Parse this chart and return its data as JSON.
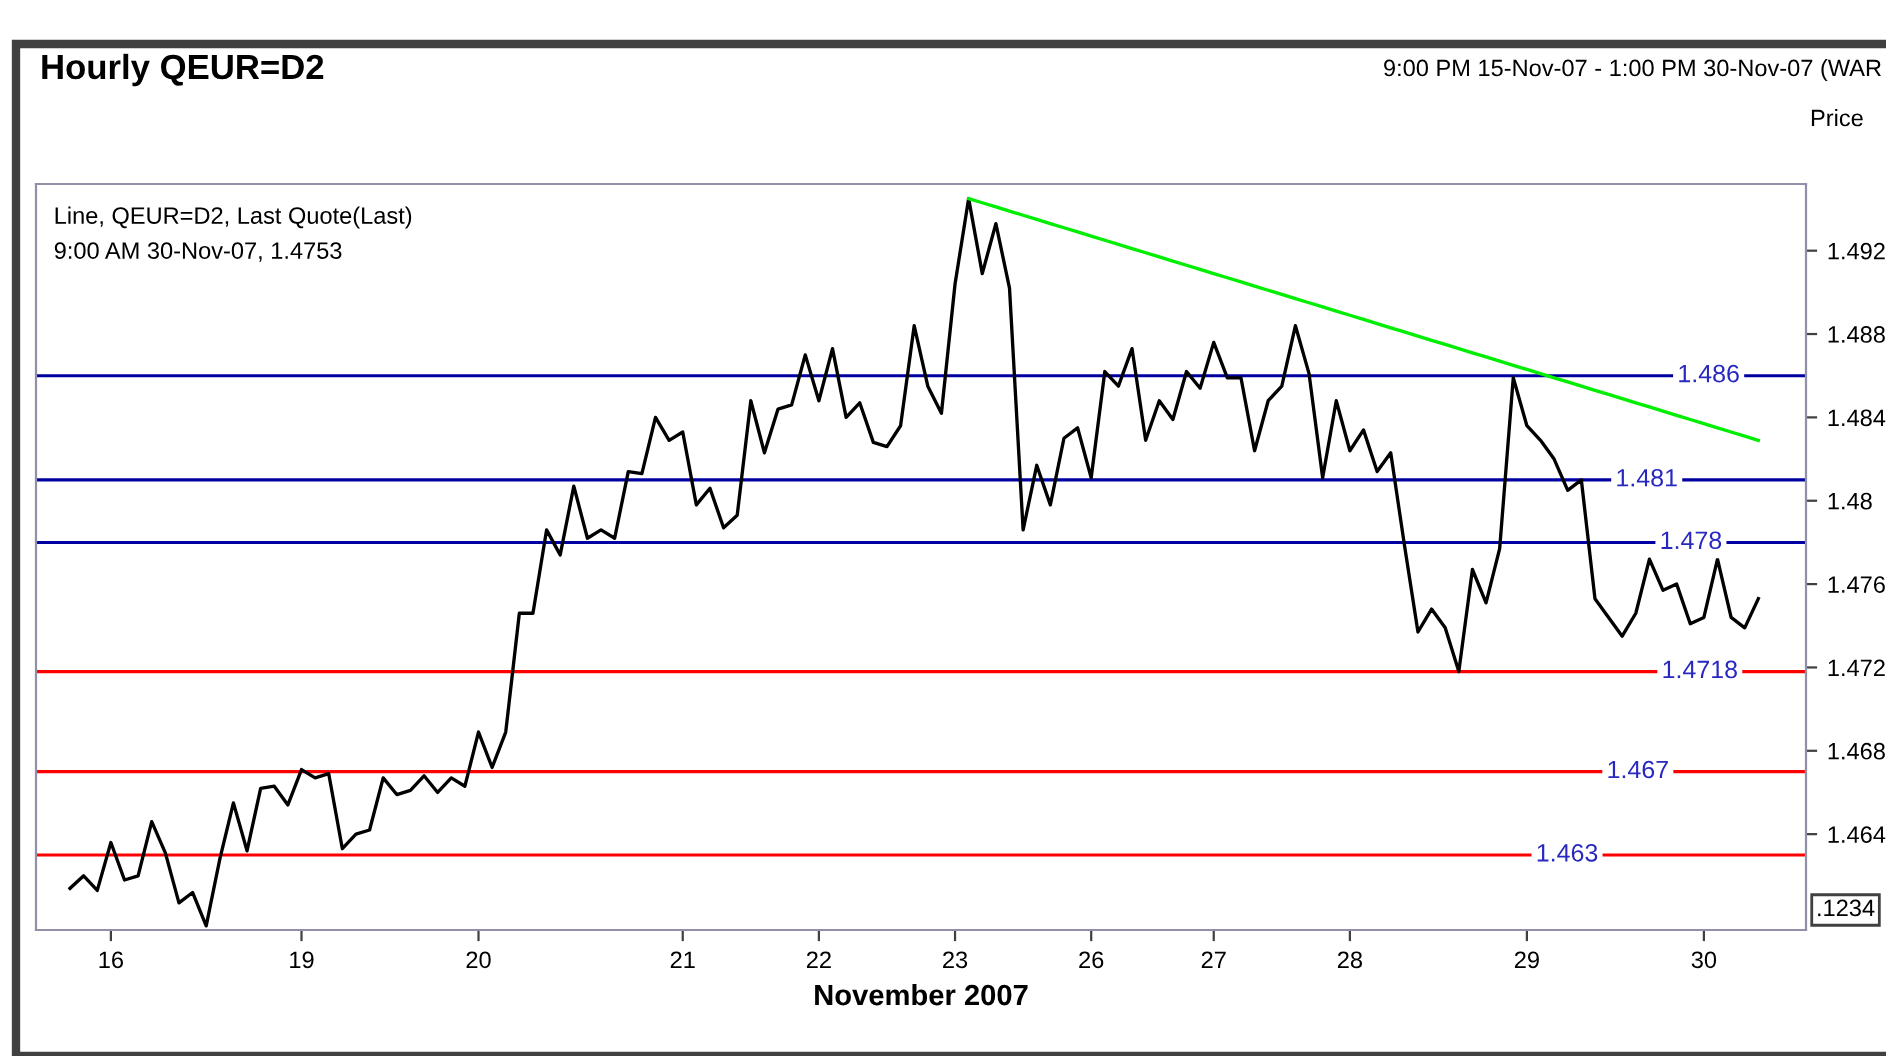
{
  "chart_data": {
    "type": "line",
    "title": "Hourly QEUR=D2",
    "subtitle": "9:00 PM 15-Nov-07 - 1:00 PM 30-Nov-07 (WAR",
    "xlabel": "November 2007",
    "ylabel": "Price",
    "annotations": [
      "Line, QEUR=D2, Last Quote(Last)",
      "9:00 AM 30-Nov-07, 1.4753",
      ".1234"
    ],
    "categories": [
      null,
      null,
      null,
      "16",
      null,
      null,
      null,
      null,
      null,
      null,
      null,
      null,
      null,
      null,
      null,
      null,
      null,
      "19",
      null,
      null,
      null,
      null,
      null,
      null,
      null,
      null,
      null,
      null,
      null,
      null,
      "20",
      null,
      null,
      null,
      null,
      null,
      null,
      null,
      null,
      null,
      null,
      null,
      null,
      null,
      null,
      "21",
      null,
      null,
      null,
      null,
      null,
      null,
      null,
      null,
      null,
      "22",
      null,
      null,
      null,
      null,
      null,
      null,
      null,
      null,
      null,
      "23",
      null,
      null,
      null,
      null,
      null,
      null,
      null,
      null,
      null,
      "26",
      null,
      null,
      null,
      null,
      null,
      null,
      null,
      null,
      "27",
      null,
      null,
      null,
      null,
      null,
      null,
      null,
      null,
      null,
      "28",
      null,
      null,
      null,
      null,
      null,
      null,
      null,
      null,
      null,
      null,
      null,
      null,
      "29",
      null,
      null,
      null,
      null,
      null,
      null,
      null,
      null,
      null,
      null,
      null,
      null,
      "30",
      null,
      null,
      null,
      null
    ],
    "ylim": [
      1.4594,
      1.4952
    ],
    "yticks": [
      1.464,
      1.468,
      1.472,
      1.476,
      1.48,
      1.484,
      1.488,
      1.492
    ],
    "grid": false,
    "legend": false,
    "marker": "none",
    "line_style": "solid",
    "series": [
      {
        "color": "#000000",
        "values": [
          1.4614,
          1.462,
          1.4613,
          1.4636,
          1.4618,
          1.462,
          1.4646,
          1.4631,
          1.4607,
          1.4612,
          1.4596,
          1.4628,
          1.4655,
          1.4632,
          1.4662,
          1.4663,
          1.4654,
          1.4671,
          1.4667,
          1.4669,
          1.4633,
          1.464,
          1.4642,
          1.4667,
          1.4659,
          1.4661,
          1.4668,
          1.466,
          1.4667,
          1.4663,
          1.4689,
          1.4672,
          1.4689,
          1.4746,
          1.4746,
          1.4786,
          1.4774,
          1.4807,
          1.4782,
          1.4786,
          1.4782,
          1.4814,
          1.4813,
          1.484,
          1.4829,
          1.4833,
          1.4798,
          1.4806,
          1.4787,
          1.4793,
          1.4848,
          1.4823,
          1.4844,
          1.4846,
          1.487,
          1.4848,
          1.4873,
          1.484,
          1.4847,
          1.4828,
          1.4826,
          1.4836,
          1.4884,
          1.4855,
          1.4842,
          1.4904,
          1.4945,
          1.4909,
          1.4933,
          1.4902,
          1.4786,
          1.4817,
          1.4798,
          1.483,
          1.4835,
          1.4811,
          1.4862,
          1.4855,
          1.4873,
          1.4829,
          1.4848,
          1.4839,
          1.4862,
          1.4854,
          1.4876,
          1.4859,
          1.4859,
          1.4824,
          1.4848,
          1.4855,
          1.4884,
          1.4861,
          1.4811,
          1.4848,
          1.4824,
          1.4834,
          1.4814,
          1.4823,
          1.4779,
          1.4737,
          1.4748,
          1.4739,
          1.4718,
          1.4767,
          1.4751,
          1.4777,
          1.4859,
          1.4836,
          1.4829,
          1.482,
          1.4805,
          1.481,
          1.4753,
          1.4744,
          1.4735,
          1.4746,
          1.4772,
          1.4757,
          1.476,
          1.4741,
          1.4744,
          1.4772,
          1.4744,
          1.4739,
          1.4753
        ]
      },
      {
        "type": "line",
        "color": "#00ee00",
        "values": [
          null,
          null,
          null,
          null,
          null,
          null,
          null,
          null,
          null,
          null,
          null,
          null,
          null,
          null,
          null,
          null,
          null,
          null,
          null,
          null,
          null,
          null,
          null,
          null,
          null,
          null,
          null,
          null,
          null,
          null,
          null,
          null,
          null,
          null,
          null,
          null,
          null,
          null,
          null,
          null,
          null,
          null,
          null,
          null,
          null,
          null,
          null,
          null,
          null,
          null,
          null,
          null,
          null,
          null,
          null,
          null,
          null,
          null,
          null,
          null,
          null,
          null,
          null,
          null,
          null,
          null,
          1.4945,
          1.4943,
          1.4941,
          1.4939,
          1.4937,
          1.4935,
          1.4933,
          1.4931,
          1.4929,
          1.4927,
          1.4925,
          1.4923,
          1.4921,
          1.4919,
          1.4917,
          1.4915,
          1.4913,
          1.4911,
          1.4909,
          1.4907,
          1.4905,
          1.4903,
          1.4901,
          1.4899,
          1.4897,
          1.4895,
          1.4893,
          1.4891,
          1.4889,
          1.4887,
          1.4885,
          1.4883,
          1.4881,
          1.4879,
          1.4877,
          1.4875,
          1.4873,
          1.4871,
          1.4869,
          1.4867,
          1.4865,
          1.4863,
          1.4861,
          1.4859,
          1.4857,
          1.4855,
          1.4853,
          1.4851,
          1.4849,
          1.4847,
          1.4845,
          1.4843,
          1.4841,
          1.4839,
          1.4837,
          1.4835,
          1.4833,
          1.4831,
          1.4829
        ]
      }
    ],
    "ref_lines": [
      {
        "axis": "y",
        "value": 1.486,
        "label": "1.486",
        "color": "#0000a0"
      },
      {
        "axis": "y",
        "value": 1.481,
        "label": "1.481",
        "color": "#0000a0"
      },
      {
        "axis": "y",
        "value": 1.478,
        "label": "1.478",
        "color": "#0000a0"
      },
      {
        "axis": "y",
        "value": 1.4718,
        "label": "1.4718",
        "color": "#ff0000"
      },
      {
        "axis": "y",
        "value": 1.467,
        "label": "1.467",
        "color": "#ff0000"
      },
      {
        "axis": "y",
        "value": 1.463,
        "label": "1.463",
        "color": "#ff0000"
      }
    ]
  }
}
